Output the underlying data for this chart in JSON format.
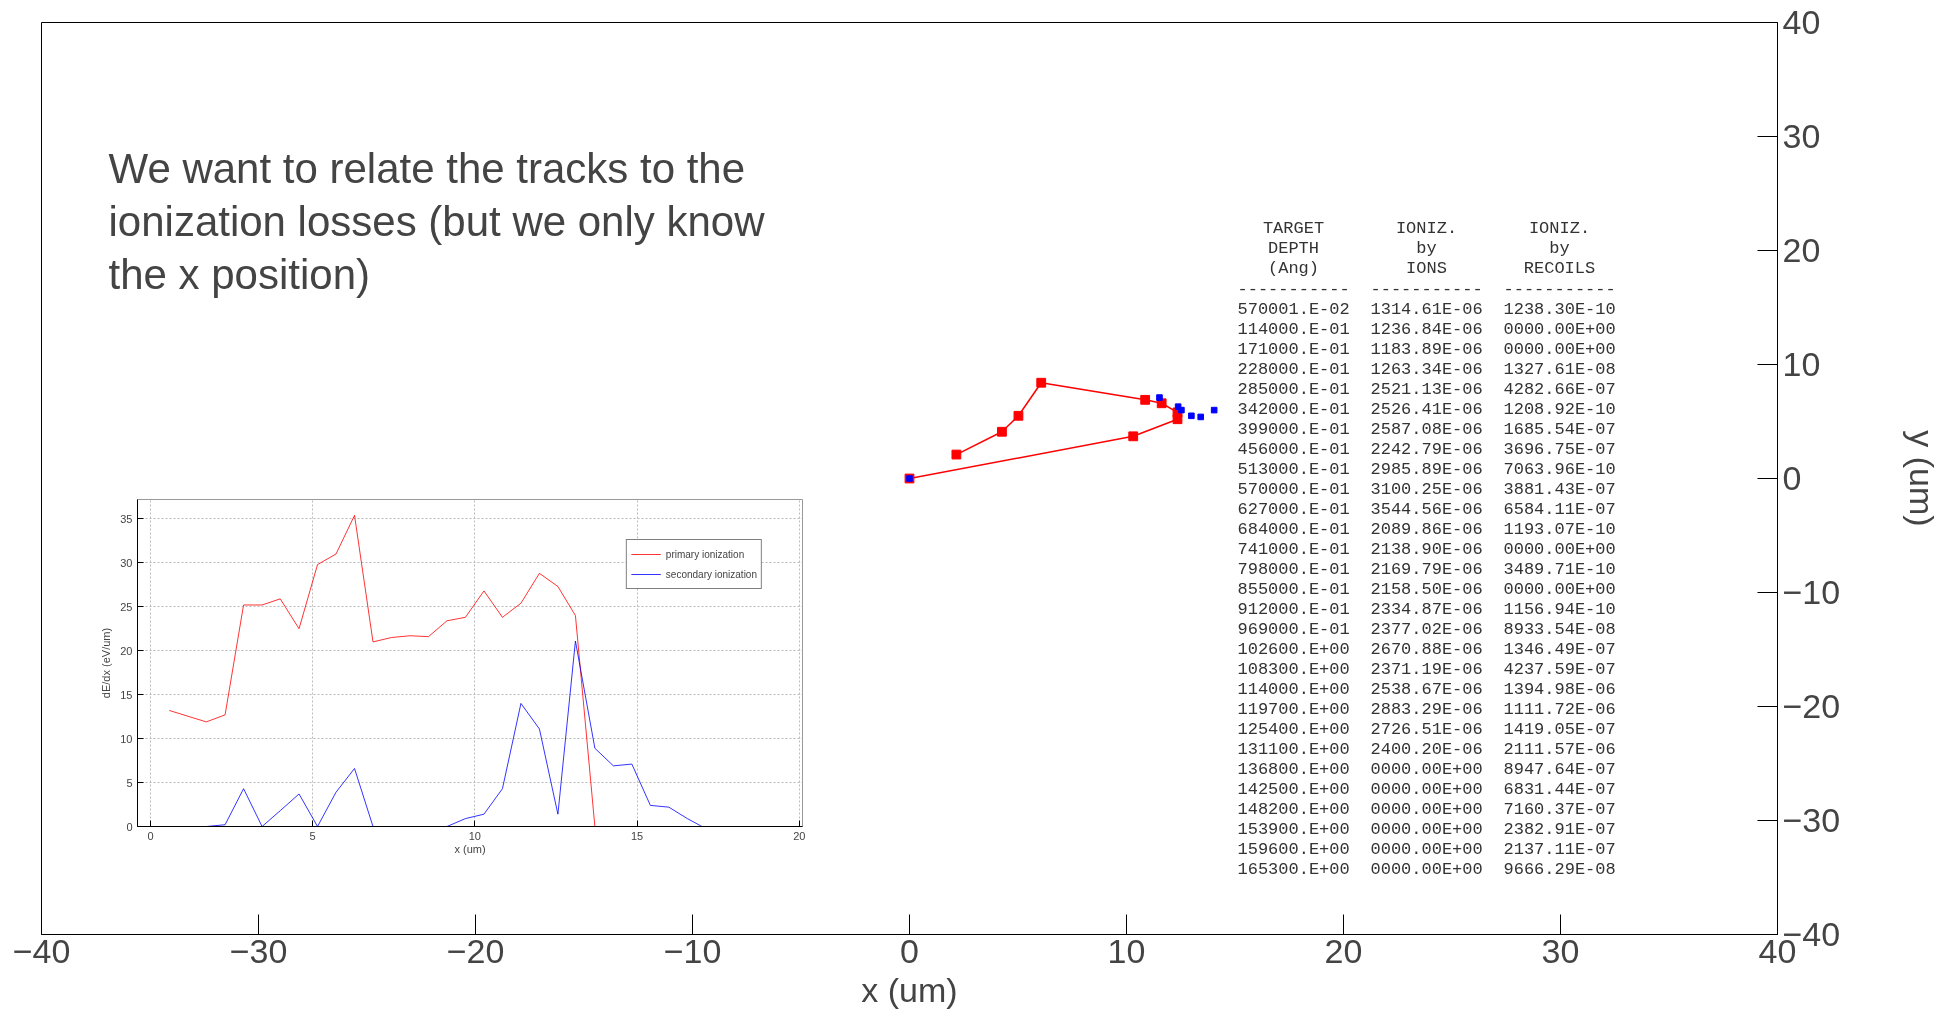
{
  "chart_data": [
    {
      "type": "line",
      "xlabel": "x (um)",
      "ylabel": "y (um)",
      "xlim": [
        -40,
        40
      ],
      "ylim": [
        -40,
        40
      ],
      "xticks": [
        -40,
        -30,
        -20,
        -10,
        0,
        10,
        20,
        30,
        40
      ],
      "yticks": [
        -40,
        -30,
        -20,
        -10,
        0,
        10,
        20,
        30,
        40
      ],
      "grid": false,
      "legend": false,
      "marker": "square",
      "series": [
        {
          "type": "line",
          "color": "#ff0000",
          "x": [
            2.16,
            4.26,
            5.02,
            6.07,
            10.86,
            11.62,
            12.35,
            12.35,
            10.31,
            0
          ],
          "values": [
            2.1,
            4.1,
            5.5,
            8.4,
            6.9,
            6.6,
            5.8,
            5.2,
            3.7,
            0
          ]
        },
        {
          "type": "scatter",
          "color": "#0000ff",
          "x": [
            0,
            11.52,
            12.38,
            12.53,
            12.99,
            13.42,
            14.04
          ],
          "values": [
            0,
            7.1,
            6.3,
            6.0,
            5.5,
            5.4,
            6.0
          ]
        }
      ],
      "annotations": [
        "We want to relate the tracks to the ionization losses (but we only know the x position)",
        "  TARGET       IONIZ.       IONIZ.",
        "  DEPTH         by           by",
        "  (Ang)        IONS         RECOILS",
        "-----------  -----------  -----------",
        "570001.E-02  1314.61E-06  1238.30E-10",
        "114000.E-01  1236.84E-06  0000.00E+00",
        "171000.E-01  1183.89E-06  0000.00E+00",
        "228000.E-01  1263.34E-06  1327.61E-08",
        "285000.E-01  2521.13E-06  4282.66E-07",
        "342000.E-01  2526.41E-06  1208.92E-10",
        "399000.E-01  2587.08E-06  1685.54E-07",
        "456000.E-01  2242.79E-06  3696.75E-07",
        "513000.E-01  2985.89E-06  7063.96E-10",
        "570000.E-01  3100.25E-06  3881.43E-07",
        "627000.E-01  3544.56E-06  6584.11E-07",
        "684000.E-01  2089.86E-06  1193.07E-10",
        "741000.E-01  2138.90E-06  0000.00E+00",
        "798000.E-01  2169.79E-06  3489.71E-10",
        "855000.E-01  2158.50E-06  0000.00E+00",
        "912000.E-01  2334.87E-06  1156.94E-10",
        "969000.E-01  2377.02E-06  8933.54E-08",
        "102600.E+00  2670.88E-06  1346.49E-07",
        "108300.E+00  2371.19E-06  4237.59E-07",
        "114000.E+00  2538.67E-06  1394.98E-06",
        "119700.E+00  2883.29E-06  1111.72E-06",
        "125400.E+00  2726.51E-06  1419.05E-07",
        "131100.E+00  2400.20E-06  2111.57E-06",
        "136800.E+00  0000.00E+00  8947.64E-07",
        "142500.E+00  0000.00E+00  6831.44E-07",
        "148200.E+00  0000.00E+00  7160.37E-07",
        "153900.E+00  0000.00E+00  2382.91E-07",
        "159600.E+00  0000.00E+00  2137.11E-07",
        "165300.E+00  0000.00E+00  9666.29E-08"
      ]
    },
    {
      "type": "line",
      "xlabel": "x (um)",
      "ylabel": "dE/dx (eV/um)",
      "xlim": [
        -0.4,
        20.1
      ],
      "ylim": [
        0,
        37.2
      ],
      "xticks": [
        0,
        5,
        10,
        15,
        20
      ],
      "yticks": [
        0,
        5,
        10,
        15,
        20,
        25,
        30,
        35
      ],
      "grid": true,
      "legend": "top right",
      "series": [
        {
          "name": "primary ionization",
          "color": "#ff0000",
          "x": [
            0.58,
            1.72,
            2.3,
            2.87,
            3.44,
            4.0,
            4.58,
            5.15,
            5.72,
            6.29,
            6.86,
            7.43,
            8.0,
            8.57,
            9.14,
            9.71,
            10.28,
            10.85,
            11.42,
            11.99,
            12.56,
            13.1,
            13.7,
            17.0
          ],
          "values": [
            13.2,
            11.9,
            12.7,
            25.2,
            25.2,
            25.9,
            22.5,
            29.8,
            31.0,
            35.4,
            21.0,
            21.5,
            21.7,
            21.6,
            23.4,
            23.8,
            26.8,
            23.8,
            25.4,
            28.8,
            27.3,
            24.0,
            0,
            0
          ]
        },
        {
          "name": "secondary ionization",
          "color": "#0000ff",
          "x": [
            0.58,
            1.72,
            2.3,
            2.87,
            3.44,
            4.0,
            4.58,
            5.15,
            5.72,
            6.29,
            6.86,
            9.14,
            9.71,
            10.28,
            10.85,
            11.42,
            11.99,
            12.56,
            13.1,
            13.7,
            14.27,
            14.84,
            15.41,
            15.98,
            16.55,
            17.0,
            20.0
          ],
          "values": [
            0,
            0,
            0.2,
            4.3,
            0,
            1.8,
            3.7,
            0,
            3.9,
            6.6,
            0,
            0,
            0.9,
            1.4,
            4.3,
            14.0,
            11.1,
            1.4,
            21.1,
            8.9,
            6.9,
            7.1,
            2.4,
            2.2,
            0.9,
            0,
            0
          ]
        }
      ]
    }
  ]
}
